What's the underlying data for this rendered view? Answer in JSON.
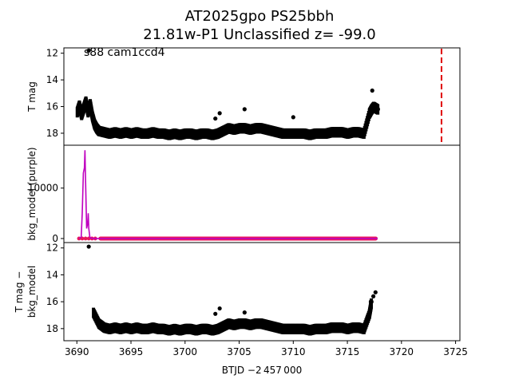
{
  "title_line1": "AT2025gpo  PS25bbh",
  "title_line2": "21.81w-P1 Unclassified z= -99.0",
  "colors": {
    "points": "#000000",
    "bkg_line": "#bf00bf",
    "bkg_points": "#e8175d",
    "vline": "#e00000"
  },
  "chart_data": [
    {
      "type": "scatter",
      "panel": "top",
      "ylabel": "T mag",
      "ylim": [
        18.9,
        11.6
      ],
      "y_inverted": true,
      "yticks": [
        12,
        14,
        16,
        18
      ],
      "annotation": "s88 cam1ccd4",
      "vertical_line_x": 3723.7,
      "series": [
        {
          "x": [
            3690.0,
            3690.2,
            3690.4,
            3690.6,
            3690.8,
            3691.0,
            3691.2,
            3691.4,
            3691.6,
            3691.8,
            3692.0,
            3692.5,
            3693.0,
            3693.5,
            3694.0,
            3694.5,
            3695.0,
            3695.5,
            3696.0,
            3696.5,
            3697.0,
            3697.5,
            3698.0,
            3698.5,
            3699.0,
            3699.5,
            3700.0,
            3700.5,
            3701.0,
            3701.5,
            3702.0,
            3702.5,
            3703.0,
            3703.5,
            3704.0,
            3704.5,
            3705.0,
            3705.5,
            3706.0,
            3706.5,
            3707.0,
            3707.5,
            3708.0,
            3708.5,
            3709.0,
            3709.5,
            3710.0,
            3710.5,
            3711.0,
            3711.5,
            3712.0,
            3712.5,
            3713.0,
            3713.5,
            3714.0,
            3714.5,
            3715.0,
            3715.5,
            3716.0,
            3716.5,
            3717.0,
            3717.2,
            3717.4,
            3717.6,
            3717.8
          ],
          "y": [
            16.4,
            15.9,
            16.6,
            16.1,
            15.6,
            16.4,
            15.8,
            16.7,
            17.3,
            17.6,
            17.8,
            17.9,
            18.0,
            17.9,
            18.0,
            17.9,
            18.0,
            17.9,
            18.0,
            18.0,
            17.9,
            18.0,
            18.0,
            18.1,
            18.0,
            18.1,
            18.0,
            18.0,
            18.1,
            18.0,
            18.0,
            18.1,
            18.0,
            17.8,
            17.6,
            17.7,
            17.6,
            17.6,
            17.7,
            17.6,
            17.6,
            17.7,
            17.8,
            17.9,
            18.0,
            18.0,
            18.0,
            18.0,
            18.0,
            18.1,
            18.0,
            18.0,
            18.0,
            17.9,
            17.9,
            17.9,
            18.0,
            17.9,
            17.9,
            18.0,
            16.5,
            16.2,
            16.0,
            16.1,
            16.2
          ],
          "outliers": [
            [
              3691.1,
              11.8
            ],
            [
              3702.8,
              16.9
            ],
            [
              3703.2,
              16.5
            ],
            [
              3717.3,
              14.8
            ],
            [
              3705.5,
              16.2
            ],
            [
              3710.0,
              16.8
            ]
          ]
        }
      ]
    },
    {
      "type": "line",
      "panel": "middle",
      "ylabel": "bkg_model (purple)",
      "ylim": [
        -800,
        18500
      ],
      "yticks": [
        0,
        10000
      ],
      "series": [
        {
          "x": [
            3690.2,
            3690.4,
            3690.5,
            3690.6,
            3690.7,
            3690.75,
            3690.8,
            3690.9,
            3691.0,
            3691.05,
            3691.1,
            3691.2,
            3691.3,
            3691.5,
            3692.0,
            3717.8
          ],
          "y": [
            0,
            300,
            5000,
            13000,
            14000,
            17500,
            12000,
            2000,
            3000,
            5000,
            2000,
            300,
            100,
            0,
            0,
            0
          ]
        }
      ]
    },
    {
      "type": "scatter",
      "panel": "bottom",
      "ylabel": "T mag −\nbkg_model",
      "ylim": [
        18.9,
        11.6
      ],
      "y_inverted": true,
      "yticks": [
        12,
        14,
        16,
        18
      ],
      "xlabel": "BTJD −2 457 000",
      "xlim": [
        3688.8,
        3725.4
      ],
      "xticks": [
        3690,
        3695,
        3700,
        3705,
        3710,
        3715,
        3720,
        3725
      ],
      "series": [
        {
          "x": [
            3691.5,
            3692.0,
            3692.5,
            3693.0,
            3693.5,
            3694.0,
            3694.5,
            3695.0,
            3695.5,
            3696.0,
            3696.5,
            3697.0,
            3697.5,
            3698.0,
            3698.5,
            3699.0,
            3699.5,
            3700.0,
            3700.5,
            3701.0,
            3701.5,
            3702.0,
            3702.5,
            3703.0,
            3703.5,
            3704.0,
            3704.5,
            3705.0,
            3705.5,
            3706.0,
            3706.5,
            3707.0,
            3707.5,
            3708.0,
            3708.5,
            3709.0,
            3709.5,
            3710.0,
            3710.5,
            3711.0,
            3711.5,
            3712.0,
            3712.5,
            3713.0,
            3713.5,
            3714.0,
            3714.5,
            3715.0,
            3715.5,
            3716.0,
            3716.5,
            3717.0,
            3717.2
          ],
          "y": [
            16.8,
            17.6,
            17.9,
            18.0,
            17.9,
            18.0,
            17.9,
            18.0,
            17.9,
            18.0,
            18.0,
            17.9,
            18.0,
            18.0,
            18.1,
            18.0,
            18.1,
            18.0,
            18.0,
            18.1,
            18.0,
            18.0,
            18.1,
            18.0,
            17.8,
            17.6,
            17.7,
            17.6,
            17.6,
            17.7,
            17.6,
            17.6,
            17.7,
            17.8,
            17.9,
            18.0,
            18.0,
            18.0,
            18.0,
            18.0,
            18.1,
            18.0,
            18.0,
            18.0,
            17.9,
            17.9,
            17.9,
            18.0,
            17.9,
            17.9,
            18.0,
            16.9,
            16.0
          ],
          "outliers": [
            [
              3691.1,
              11.9
            ],
            [
              3702.8,
              16.9
            ],
            [
              3703.2,
              16.5
            ],
            [
              3717.4,
              15.6
            ],
            [
              3717.6,
              15.3
            ],
            [
              3705.5,
              16.8
            ]
          ]
        }
      ]
    }
  ]
}
